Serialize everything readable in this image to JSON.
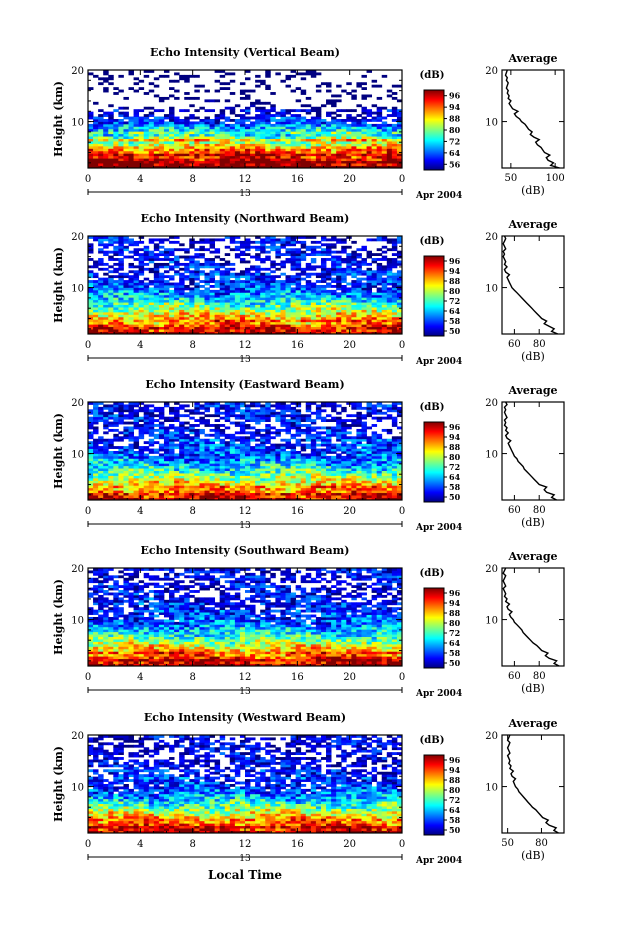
{
  "figure": {
    "xlabel": "Local Time",
    "date_label": "Apr 2004",
    "cbar_title": "(dB)",
    "avg_title": "Average",
    "avg_xlabel": "(dB)"
  },
  "chart_data": [
    {
      "type": "heatmap",
      "title": "Echo Intensity (Vertical Beam)",
      "ylabel": "Height (km)",
      "x_ticks": [
        "0",
        "4",
        "8",
        "12",
        "16",
        "20",
        "0"
      ],
      "x_range": [
        0,
        24
      ],
      "day_marker": "13",
      "y_ticks": [
        "10",
        "20"
      ],
      "y_range": [
        1,
        20
      ],
      "colorbar": {
        "ticks": [
          "56",
          "64",
          "72",
          "80",
          "88",
          "94",
          "96"
        ],
        "range": [
          56,
          96
        ]
      },
      "average_profile": {
        "x_ticks": [
          "50",
          "100"
        ],
        "x_range": [
          40,
          110
        ],
        "y_ticks": [
          "10",
          "20"
        ],
        "y_range": [
          1,
          20
        ],
        "height": [
          1,
          1.5,
          2,
          2.5,
          3,
          3.5,
          4,
          4.5,
          5,
          5.5,
          6,
          6.5,
          7,
          7.5,
          8,
          8.5,
          9,
          9.5,
          10,
          10.5,
          11,
          11.5,
          12,
          12.5,
          13,
          13.5,
          14,
          14.5,
          15,
          15.5,
          16,
          16.5,
          17,
          17.5,
          18,
          18.5,
          19,
          19.5,
          20
        ],
        "value": [
          105,
          95,
          98,
          92,
          90,
          94,
          88,
          86,
          84,
          80,
          78,
          82,
          76,
          72,
          74,
          70,
          68,
          66,
          62,
          60,
          56,
          54,
          58,
          52,
          50,
          48,
          50,
          47,
          48,
          46,
          47,
          45,
          46,
          47,
          45,
          46,
          44,
          45,
          46
        ]
      }
    },
    {
      "type": "heatmap",
      "title": "Echo Intensity (Northward Beam)",
      "ylabel": "Height (km)",
      "x_ticks": [
        "0",
        "4",
        "8",
        "12",
        "16",
        "20",
        "0"
      ],
      "x_range": [
        0,
        24
      ],
      "day_marker": "13",
      "y_ticks": [
        "10",
        "20"
      ],
      "y_range": [
        1,
        20
      ],
      "colorbar": {
        "ticks": [
          "50",
          "58",
          "64",
          "72",
          "80",
          "88",
          "94",
          "96"
        ],
        "range": [
          50,
          96
        ]
      },
      "average_profile": {
        "x_ticks": [
          "60",
          "80"
        ],
        "x_range": [
          50,
          100
        ],
        "y_ticks": [
          "10",
          "20"
        ],
        "y_range": [
          1,
          20
        ],
        "height": [
          1,
          1.5,
          2,
          2.5,
          3,
          3.5,
          4,
          4.5,
          5,
          5.5,
          6,
          6.5,
          7,
          7.5,
          8,
          8.5,
          9,
          9.5,
          10,
          10.5,
          11,
          11.5,
          12,
          12.5,
          13,
          13.5,
          14,
          14.5,
          15,
          15.5,
          16,
          16.5,
          17,
          17.5,
          18,
          18.5,
          19,
          19.5,
          20
        ],
        "value": [
          95,
          90,
          92,
          88,
          84,
          86,
          82,
          80,
          78,
          76,
          74,
          72,
          70,
          68,
          66,
          64,
          62,
          60,
          58,
          57,
          56,
          55,
          54,
          56,
          53,
          52,
          54,
          52,
          53,
          52,
          51,
          52,
          51,
          53,
          52,
          51,
          52,
          53,
          52
        ]
      }
    },
    {
      "type": "heatmap",
      "title": "Echo Intensity (Eastward Beam)",
      "ylabel": "Height (km)",
      "x_ticks": [
        "0",
        "4",
        "8",
        "12",
        "16",
        "20",
        "0"
      ],
      "x_range": [
        0,
        24
      ],
      "day_marker": "13",
      "y_ticks": [
        "10",
        "20"
      ],
      "y_range": [
        1,
        20
      ],
      "colorbar": {
        "ticks": [
          "50",
          "58",
          "64",
          "72",
          "80",
          "88",
          "94",
          "96"
        ],
        "range": [
          50,
          96
        ]
      },
      "average_profile": {
        "x_ticks": [
          "60",
          "80"
        ],
        "x_range": [
          50,
          100
        ],
        "y_ticks": [
          "10",
          "20"
        ],
        "y_range": [
          1,
          20
        ],
        "height": [
          1,
          1.5,
          2,
          2.5,
          3,
          3.5,
          4,
          4.5,
          5,
          5.5,
          6,
          6.5,
          7,
          7.5,
          8,
          8.5,
          9,
          9.5,
          10,
          10.5,
          11,
          11.5,
          12,
          12.5,
          13,
          13.5,
          14,
          14.5,
          15,
          15.5,
          16,
          16.5,
          17,
          17.5,
          18,
          18.5,
          19,
          19.5,
          20
        ],
        "value": [
          94,
          90,
          92,
          86,
          84,
          86,
          80,
          78,
          76,
          74,
          72,
          70,
          68,
          67,
          65,
          63,
          62,
          60,
          59,
          58,
          57,
          56,
          55,
          57,
          54,
          53,
          55,
          53,
          54,
          52,
          53,
          52,
          54,
          53,
          52,
          53,
          52,
          54,
          53
        ]
      }
    },
    {
      "type": "heatmap",
      "title": "Echo Intensity (Southward Beam)",
      "ylabel": "Height (km)",
      "x_ticks": [
        "0",
        "4",
        "8",
        "12",
        "16",
        "20",
        "0"
      ],
      "x_range": [
        0,
        24
      ],
      "day_marker": "13",
      "y_ticks": [
        "10",
        "20"
      ],
      "y_range": [
        1,
        20
      ],
      "colorbar": {
        "ticks": [
          "50",
          "58",
          "64",
          "72",
          "80",
          "88",
          "94",
          "96"
        ],
        "range": [
          50,
          96
        ]
      },
      "average_profile": {
        "x_ticks": [
          "60",
          "80"
        ],
        "x_range": [
          50,
          100
        ],
        "y_ticks": [
          "10",
          "20"
        ],
        "y_range": [
          1,
          20
        ],
        "height": [
          1,
          1.5,
          2,
          2.5,
          3,
          3.5,
          4,
          4.5,
          5,
          5.5,
          6,
          6.5,
          7,
          7.5,
          8,
          8.5,
          9,
          9.5,
          10,
          10.5,
          11,
          11.5,
          12,
          12.5,
          13,
          13.5,
          14,
          14.5,
          15,
          15.5,
          16,
          16.5,
          17,
          17.5,
          18,
          18.5,
          19,
          19.5,
          20
        ],
        "value": [
          96,
          92,
          94,
          88,
          85,
          87,
          82,
          80,
          78,
          75,
          73,
          71,
          69,
          67,
          66,
          64,
          62,
          60,
          59,
          57,
          56,
          58,
          55,
          54,
          56,
          53,
          54,
          52,
          53,
          52,
          51,
          53,
          52,
          51,
          52,
          53,
          51,
          52,
          53
        ]
      }
    },
    {
      "type": "heatmap",
      "title": "Echo Intensity (Westward Beam)",
      "ylabel": "Height (km)",
      "x_ticks": [
        "0",
        "4",
        "8",
        "12",
        "16",
        "20",
        "0"
      ],
      "x_range": [
        0,
        24
      ],
      "day_marker": "13",
      "y_ticks": [
        "10",
        "20"
      ],
      "y_range": [
        1,
        20
      ],
      "colorbar": {
        "ticks": [
          "50",
          "58",
          "64",
          "72",
          "80",
          "88",
          "94",
          "96"
        ],
        "range": [
          50,
          96
        ]
      },
      "average_profile": {
        "x_ticks": [
          "50",
          "80"
        ],
        "x_range": [
          45,
          100
        ],
        "y_ticks": [
          "10",
          "20"
        ],
        "y_range": [
          1,
          20
        ],
        "height": [
          1,
          1.5,
          2,
          2.5,
          3,
          3.5,
          4,
          4.5,
          5,
          5.5,
          6,
          6.5,
          7,
          7.5,
          8,
          8.5,
          9,
          9.5,
          10,
          10.5,
          11,
          11.5,
          12,
          12.5,
          13,
          13.5,
          14,
          14.5,
          15,
          15.5,
          16,
          16.5,
          17,
          17.5,
          18,
          18.5,
          19,
          19.5,
          20
        ],
        "value": [
          95,
          91,
          93,
          87,
          84,
          86,
          81,
          79,
          77,
          75,
          72,
          70,
          68,
          66,
          64,
          62,
          60,
          59,
          57,
          56,
          55,
          57,
          54,
          53,
          55,
          52,
          53,
          51,
          52,
          51,
          50,
          52,
          51,
          50,
          51,
          52,
          50,
          51,
          52
        ]
      }
    }
  ]
}
